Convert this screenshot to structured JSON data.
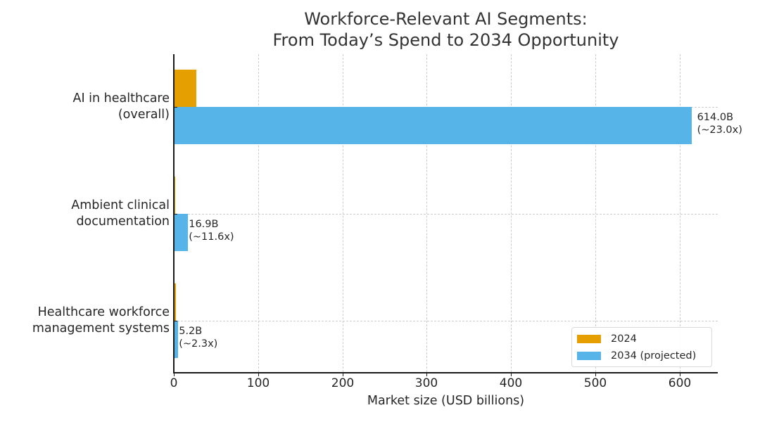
{
  "chart_data": {
    "type": "bar",
    "orientation": "horizontal",
    "title": "Workforce-Relevant AI Segments:\nFrom Today’s Spend to 2034 Opportunity",
    "title_lines": [
      "Workforce-Relevant AI Segments:",
      "From Today’s Spend to 2034 Opportunity"
    ],
    "xlabel": "Market size (USD billions)",
    "ylabel": "",
    "xlim": [
      0,
      645
    ],
    "xticks": [
      0,
      100,
      200,
      300,
      400,
      500,
      600
    ],
    "grid": true,
    "legend_position": "lower right",
    "categories": [
      "AI in healthcare\n(overall)",
      "Ambient clinical\ndocumentation",
      "Healthcare workforce\nmanagement systems"
    ],
    "category_lines": [
      [
        "AI in healthcare",
        "(overall)"
      ],
      [
        "Ambient clinical",
        "documentation"
      ],
      [
        "Healthcare workforce",
        "management systems"
      ]
    ],
    "series": [
      {
        "name": "2024",
        "color": "#E69F00",
        "values": [
          26.7,
          1.46,
          2.26
        ]
      },
      {
        "name": "2034 (projected)",
        "color": "#56B4E9",
        "values": [
          614.0,
          16.9,
          5.2
        ]
      }
    ],
    "annotations": [
      {
        "category": "AI in healthcare (overall)",
        "line1": "614.0B",
        "line2": "(~23.0x)"
      },
      {
        "category": "Ambient clinical documentation",
        "line1": "16.9B",
        "line2": "(~11.6x)"
      },
      {
        "category": "Healthcare workforce management systems",
        "line1": "5.2B",
        "line2": "(~2.3x)"
      }
    ]
  },
  "legend": {
    "items": [
      {
        "label": "2024",
        "color": "#E69F00"
      },
      {
        "label": "2034 (projected)",
        "color": "#56B4E9"
      }
    ]
  }
}
